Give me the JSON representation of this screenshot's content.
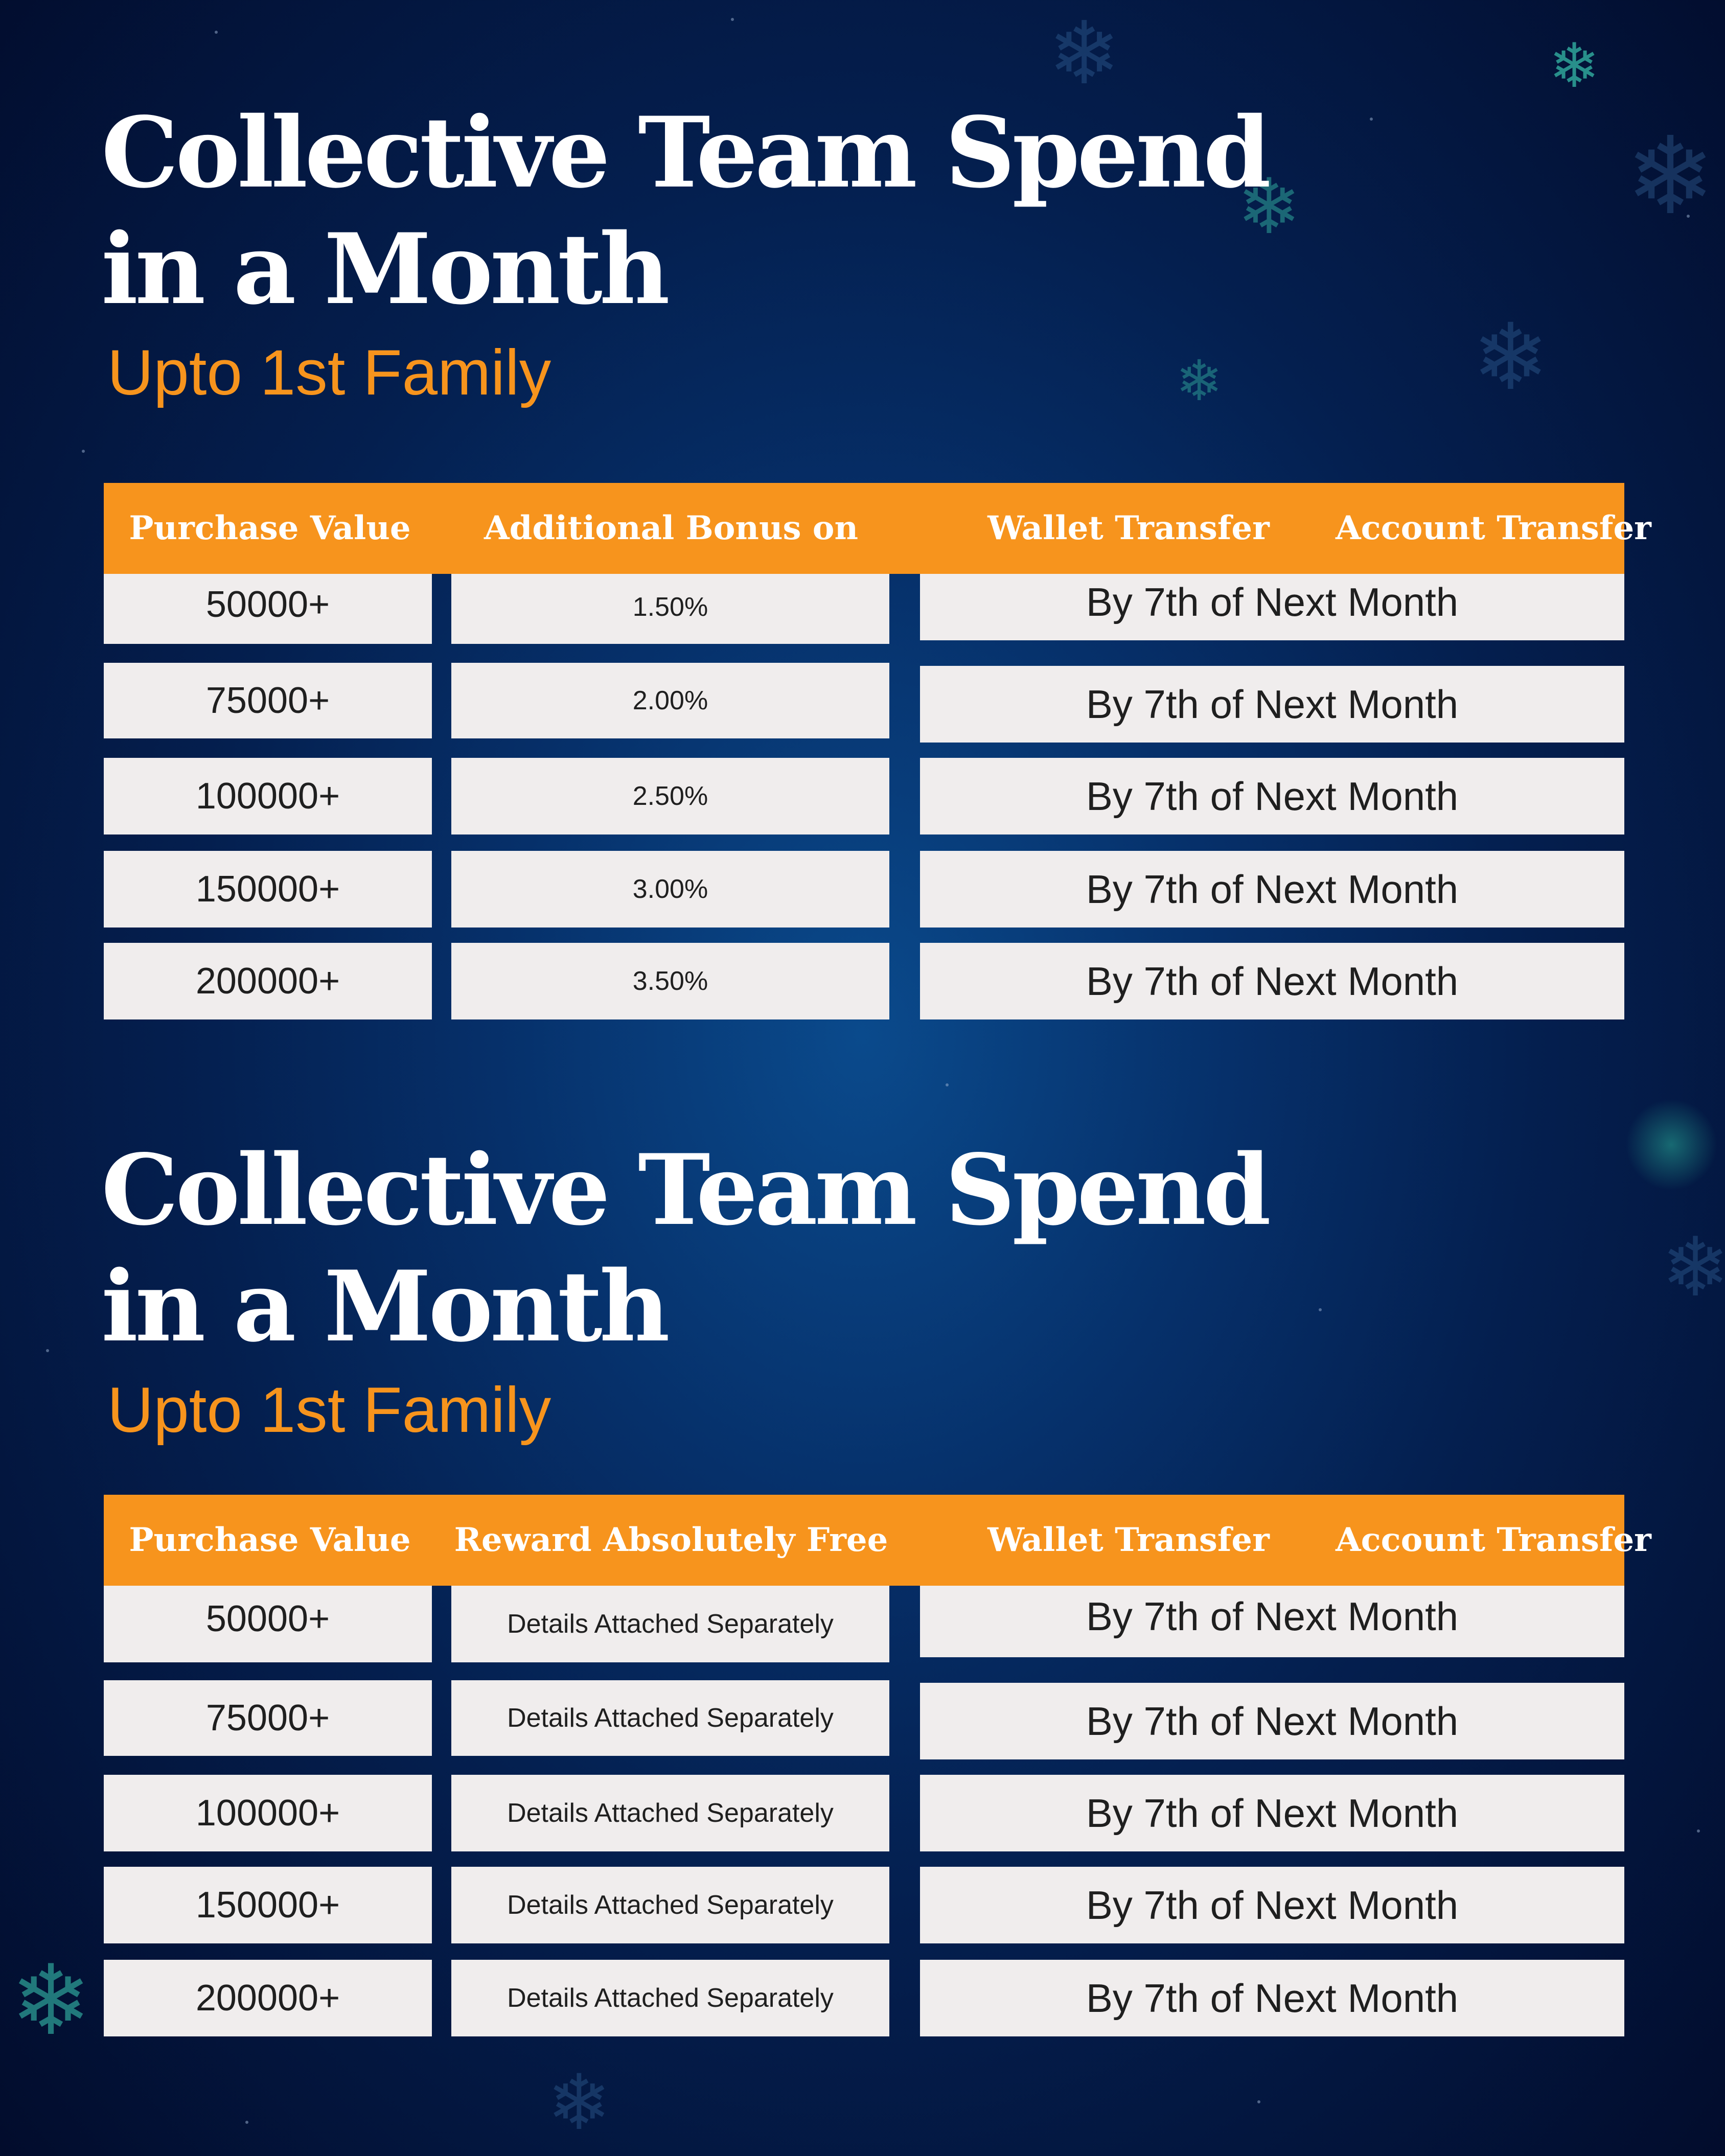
{
  "sections": [
    {
      "title_line1": "Collective Team Spend",
      "title_line2": "in a Month",
      "subtitle": "Upto 1st Family",
      "headers": [
        "Purchase Value",
        "Additional Bonus on",
        "Wallet Transfer",
        "Account Transfer"
      ],
      "rows": [
        {
          "purchase": "50000+",
          "bonus": "1.50%",
          "transfer": "By 7th of Next Month"
        },
        {
          "purchase": "75000+",
          "bonus": "2.00%",
          "transfer": "By 7th of Next Month"
        },
        {
          "purchase": "100000+",
          "bonus": "2.50%",
          "transfer": "By 7th of Next Month"
        },
        {
          "purchase": "150000+",
          "bonus": "3.00%",
          "transfer": "By 7th of Next Month"
        },
        {
          "purchase": "200000+",
          "bonus": "3.50%",
          "transfer": "By 7th of Next Month"
        }
      ]
    },
    {
      "title_line1": "Collective Team Spend",
      "title_line2": "in a Month",
      "subtitle": "Upto 1st Family",
      "headers": [
        "Purchase Value",
        "Reward Absolutely Free",
        "Wallet Transfer",
        "Account Transfer"
      ],
      "rows": [
        {
          "purchase": "50000+",
          "bonus": "Details Attached Separately",
          "transfer": "By 7th of Next Month"
        },
        {
          "purchase": "75000+",
          "bonus": "Details Attached Separately",
          "transfer": "By 7th of Next Month"
        },
        {
          "purchase": "100000+",
          "bonus": "Details Attached Separately",
          "transfer": "By 7th of Next Month"
        },
        {
          "purchase": "150000+",
          "bonus": "Details Attached Separately",
          "transfer": "By 7th of Next Month"
        },
        {
          "purchase": "200000+",
          "bonus": "Details Attached Separately",
          "transfer": "By 7th of Next Month"
        }
      ]
    }
  ],
  "colors": {
    "accent_orange": "#f7941d",
    "background_navy": "#041f4f",
    "cell_background": "#f0eded",
    "snowflake_teal": "#2fa59a"
  },
  "icons": [
    "snowflake-icon"
  ]
}
